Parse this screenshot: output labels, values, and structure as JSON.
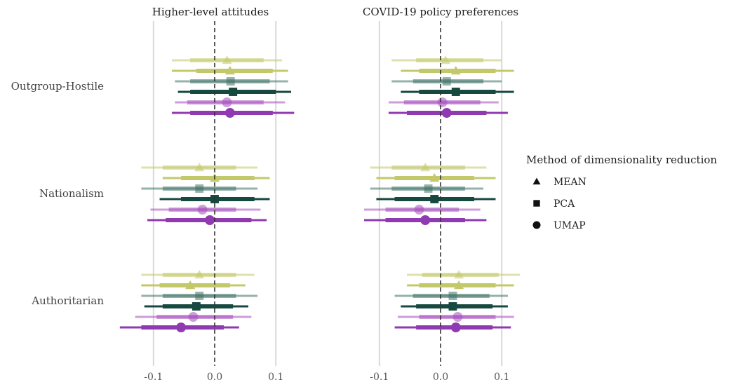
{
  "chart_data": {
    "type": "forest",
    "panels": [
      {
        "title": "Higher-level attitudes"
      },
      {
        "title": "COVID-19 policy preferences"
      }
    ],
    "rows": [
      "Outgroup-Hostile",
      "Nationalism",
      "Authoritarian"
    ],
    "x_ticks": [
      -0.1,
      0.0,
      0.1
    ],
    "x_tick_labels": [
      "-0.1",
      "0.0",
      "0.1"
    ],
    "xlim": [
      -0.16,
      0.13
    ],
    "reference_line": 0.0,
    "grid": "vertical",
    "legend": {
      "title": "Method of dimensionality reduction",
      "position": "right",
      "items": [
        {
          "label": "MEAN",
          "shape": "triangle"
        },
        {
          "label": "PCA",
          "shape": "square"
        },
        {
          "label": "UMAP",
          "shape": "circle"
        }
      ]
    },
    "series": [
      {
        "shape": "triangle",
        "color": "#c3c96a",
        "opacity": 0.55
      },
      {
        "shape": "triangle",
        "color": "#c3c96a",
        "opacity": 1.0
      },
      {
        "shape": "square",
        "color": "#3f7266",
        "opacity": 0.55
      },
      {
        "shape": "square",
        "color": "#16493f",
        "opacity": 1.0
      },
      {
        "shape": "circle",
        "color": "#a54fbe",
        "opacity": 0.55
      },
      {
        "shape": "circle",
        "color": "#8f3ab0",
        "opacity": 1.0
      }
    ],
    "estimates": [
      [
        [
          [
            0.02,
            -0.04,
            0.08,
            -0.07,
            0.11
          ],
          [
            0.025,
            -0.03,
            0.095,
            -0.07,
            0.12
          ],
          [
            0.026,
            -0.04,
            0.09,
            -0.065,
            0.12
          ],
          [
            0.03,
            -0.04,
            0.1,
            -0.06,
            0.125
          ],
          [
            0.02,
            -0.045,
            0.08,
            -0.065,
            0.115
          ],
          [
            0.025,
            -0.04,
            0.095,
            -0.07,
            0.13
          ]
        ],
        [
          [
            -0.025,
            -0.085,
            0.035,
            -0.12,
            0.07
          ],
          [
            0.0,
            -0.055,
            0.065,
            -0.085,
            0.09
          ],
          [
            -0.025,
            -0.085,
            0.035,
            -0.12,
            0.07
          ],
          [
            0.0,
            -0.055,
            0.065,
            -0.09,
            0.09
          ],
          [
            -0.02,
            -0.075,
            0.035,
            -0.105,
            0.075
          ],
          [
            -0.008,
            -0.08,
            0.06,
            -0.11,
            0.085
          ]
        ],
        [
          [
            -0.025,
            -0.085,
            0.035,
            -0.12,
            0.065
          ],
          [
            -0.04,
            -0.09,
            0.025,
            -0.12,
            0.05
          ],
          [
            -0.025,
            -0.085,
            0.035,
            -0.12,
            0.07
          ],
          [
            -0.03,
            -0.085,
            0.03,
            -0.115,
            0.055
          ],
          [
            -0.035,
            -0.095,
            0.03,
            -0.13,
            0.06
          ],
          [
            -0.055,
            -0.12,
            0.015,
            -0.155,
            0.04
          ]
        ]
      ],
      [
        [
          [
            0.008,
            -0.04,
            0.07,
            -0.08,
            0.1
          ],
          [
            0.025,
            -0.035,
            0.09,
            -0.065,
            0.12
          ],
          [
            0.01,
            -0.045,
            0.07,
            -0.08,
            0.1
          ],
          [
            0.025,
            -0.035,
            0.09,
            -0.065,
            0.12
          ],
          [
            0.003,
            -0.06,
            0.065,
            -0.085,
            0.095
          ],
          [
            0.01,
            -0.055,
            0.075,
            -0.085,
            0.11
          ]
        ],
        [
          [
            -0.025,
            -0.08,
            0.04,
            -0.115,
            0.075
          ],
          [
            -0.01,
            -0.075,
            0.055,
            -0.105,
            0.09
          ],
          [
            -0.02,
            -0.08,
            0.04,
            -0.115,
            0.07
          ],
          [
            -0.01,
            -0.075,
            0.055,
            -0.105,
            0.09
          ],
          [
            -0.035,
            -0.09,
            0.03,
            -0.125,
            0.065
          ],
          [
            -0.025,
            -0.09,
            0.04,
            -0.125,
            0.075
          ]
        ],
        [
          [
            0.03,
            -0.03,
            0.095,
            -0.055,
            0.13
          ],
          [
            0.03,
            -0.035,
            0.09,
            -0.055,
            0.12
          ],
          [
            0.02,
            -0.045,
            0.08,
            -0.075,
            0.11
          ],
          [
            0.02,
            -0.04,
            0.085,
            -0.065,
            0.11
          ],
          [
            0.028,
            -0.035,
            0.09,
            -0.07,
            0.12
          ],
          [
            0.025,
            -0.04,
            0.085,
            -0.075,
            0.115
          ]
        ]
      ]
    ]
  }
}
